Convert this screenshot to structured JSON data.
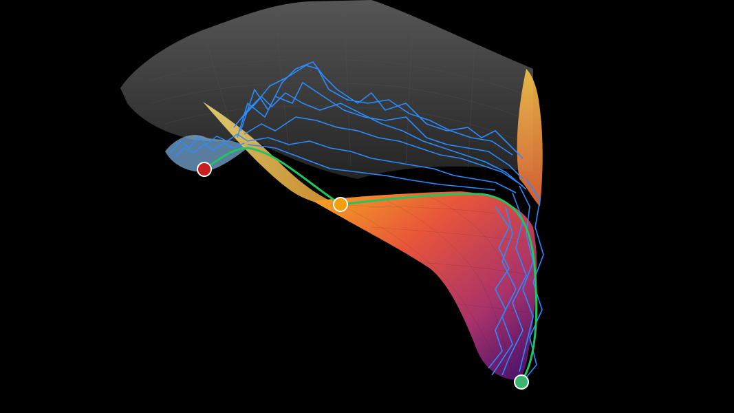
{
  "scene": {
    "background_color": "#000000",
    "surface_upper_color": "#3a3a3a",
    "surface_lower_gradient": [
      "#f5a623",
      "#e8553a",
      "#a8326a",
      "#3d0d6b"
    ],
    "trajectory_color": "#2a8cff",
    "path_color": "#22c55e",
    "markers": [
      {
        "name": "start-point-marker",
        "color": "#c81e1e"
      },
      {
        "name": "saddle-point-marker",
        "color": "#f59e0b"
      },
      {
        "name": "end-point-marker",
        "color": "#3cb371"
      }
    ]
  }
}
